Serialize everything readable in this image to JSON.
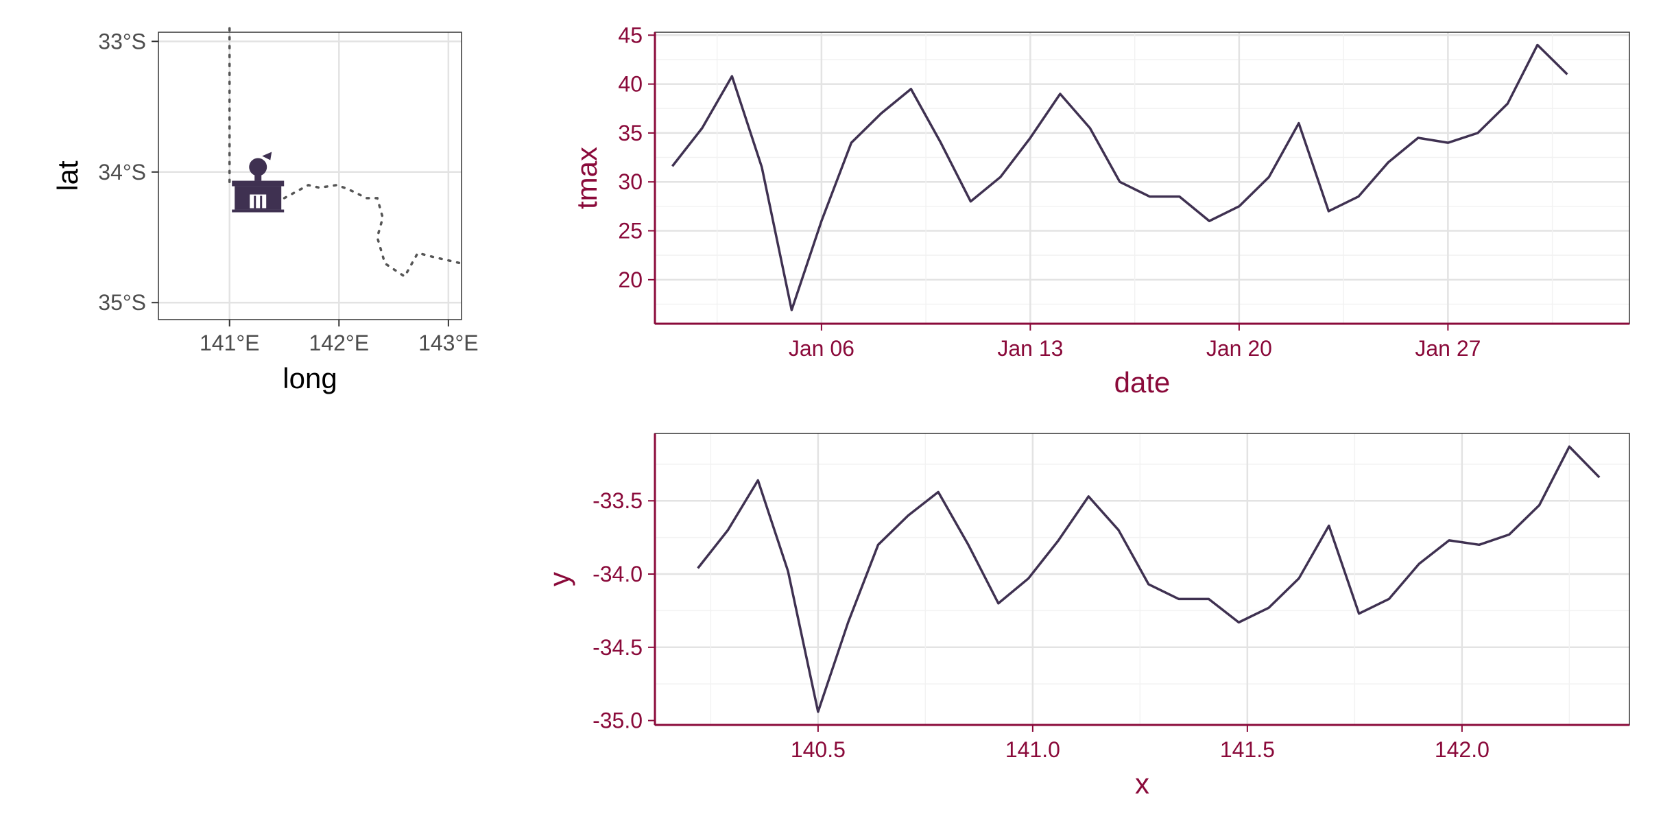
{
  "colors": {
    "line": "#3f3151",
    "accent": "#8a0a3a",
    "grid_major": "#e3e3e3",
    "grid_minor": "#f2f2f2",
    "axis_text_map": "#4d4d4d",
    "title_map": "#000000"
  },
  "chart_data": [
    {
      "type": "map",
      "xlabel": "long",
      "ylabel": "lat",
      "xlim": [
        140.35,
        143.12
      ],
      "ylim": [
        -35.13,
        -32.93
      ],
      "x_ticks": [
        {
          "value": 141,
          "label": "141°E"
        },
        {
          "value": 142,
          "label": "142°E"
        },
        {
          "value": 143,
          "label": "143°E"
        }
      ],
      "y_ticks": [
        {
          "value": -33,
          "label": "33°S"
        },
        {
          "value": -34,
          "label": "34°S"
        },
        {
          "value": -35,
          "label": "35°S"
        }
      ],
      "station_icon": "weather-station-icon",
      "station": {
        "long": 141.26,
        "lat": -34.13
      },
      "boundaries": [
        {
          "name": "state-border-vertical",
          "points": [
            [
              141.0,
              -32.9
            ],
            [
              141.0,
              -34.1
            ]
          ]
        },
        {
          "name": "river-path",
          "points": [
            [
              141.5,
              -34.2
            ],
            [
              141.72,
              -34.1
            ],
            [
              141.82,
              -34.12
            ],
            [
              141.98,
              -34.1
            ],
            [
              142.08,
              -34.13
            ],
            [
              142.18,
              -34.17
            ],
            [
              142.25,
              -34.2
            ],
            [
              142.35,
              -34.2
            ],
            [
              142.4,
              -34.35
            ],
            [
              142.35,
              -34.5
            ],
            [
              142.42,
              -34.7
            ],
            [
              142.6,
              -34.8
            ],
            [
              142.72,
              -34.62
            ],
            [
              142.86,
              -34.65
            ],
            [
              143.12,
              -34.7
            ]
          ]
        }
      ]
    },
    {
      "type": "line",
      "xlabel": "date",
      "ylabel": "tmax",
      "x_ticks": [
        {
          "value": "2020-01-06",
          "label": "Jan 06"
        },
        {
          "value": "2020-01-13",
          "label": "Jan 13"
        },
        {
          "value": "2020-01-20",
          "label": "Jan 20"
        },
        {
          "value": "2020-01-27",
          "label": "Jan 27"
        }
      ],
      "y_ticks": [
        20,
        25,
        30,
        35,
        40,
        45
      ],
      "xlim": [
        "2019-12-31T10:00",
        "2020-02-02T02:00"
      ],
      "ylim": [
        15.5,
        45.3
      ],
      "grid": true,
      "x": [
        "2020-01-01",
        "2020-01-02",
        "2020-01-03",
        "2020-01-04",
        "2020-01-05",
        "2020-01-06",
        "2020-01-07",
        "2020-01-08",
        "2020-01-09",
        "2020-01-10",
        "2020-01-11",
        "2020-01-12",
        "2020-01-13",
        "2020-01-14",
        "2020-01-15",
        "2020-01-16",
        "2020-01-17",
        "2020-01-18",
        "2020-01-19",
        "2020-01-20",
        "2020-01-21",
        "2020-01-22",
        "2020-01-23",
        "2020-01-24",
        "2020-01-25",
        "2020-01-26",
        "2020-01-27",
        "2020-01-28",
        "2020-01-29",
        "2020-01-30",
        "2020-01-31"
      ],
      "values": [
        31.6,
        35.5,
        40.8,
        31.5,
        16.9,
        26.0,
        34.0,
        37.0,
        39.5,
        34.0,
        28.0,
        30.5,
        34.5,
        39.0,
        35.5,
        30.0,
        28.5,
        28.5,
        26.0,
        27.5,
        30.5,
        36.0,
        27.0,
        28.5,
        32.0,
        34.5,
        34.0,
        35.0,
        38.0,
        44.0,
        41.0
      ]
    },
    {
      "type": "line",
      "xlabel": "x",
      "ylabel": "y",
      "x_ticks": [
        140.5,
        141.0,
        141.5,
        142.0
      ],
      "x_tick_labels": [
        "140.5",
        "141.0",
        "141.5",
        "142.0"
      ],
      "y_ticks": [
        -35.0,
        -34.5,
        -34.0,
        -33.5
      ],
      "y_tick_labels": [
        "-35.0",
        "-34.5",
        "-34.0",
        "-33.5"
      ],
      "xlim": [
        140.12,
        142.39
      ],
      "ylim": [
        -35.03,
        -33.04
      ],
      "grid": true,
      "x": [
        140.22,
        140.29,
        140.36,
        140.43,
        140.5,
        140.57,
        140.64,
        140.71,
        140.78,
        140.85,
        140.92,
        140.99,
        141.06,
        141.13,
        141.2,
        141.27,
        141.34,
        141.41,
        141.48,
        141.55,
        141.62,
        141.69,
        141.76,
        141.83,
        141.9,
        141.97,
        142.04,
        142.11,
        142.18,
        142.25,
        142.32
      ],
      "values": [
        -33.96,
        -33.7,
        -33.36,
        -33.98,
        -34.94,
        -34.33,
        -33.8,
        -33.6,
        -33.44,
        -33.8,
        -34.2,
        -34.03,
        -33.77,
        -33.47,
        -33.7,
        -34.07,
        -34.17,
        -34.17,
        -34.33,
        -34.23,
        -34.03,
        -33.67,
        -34.27,
        -34.17,
        -33.93,
        -33.77,
        -33.8,
        -33.73,
        -33.53,
        -33.13,
        -33.34
      ]
    }
  ]
}
